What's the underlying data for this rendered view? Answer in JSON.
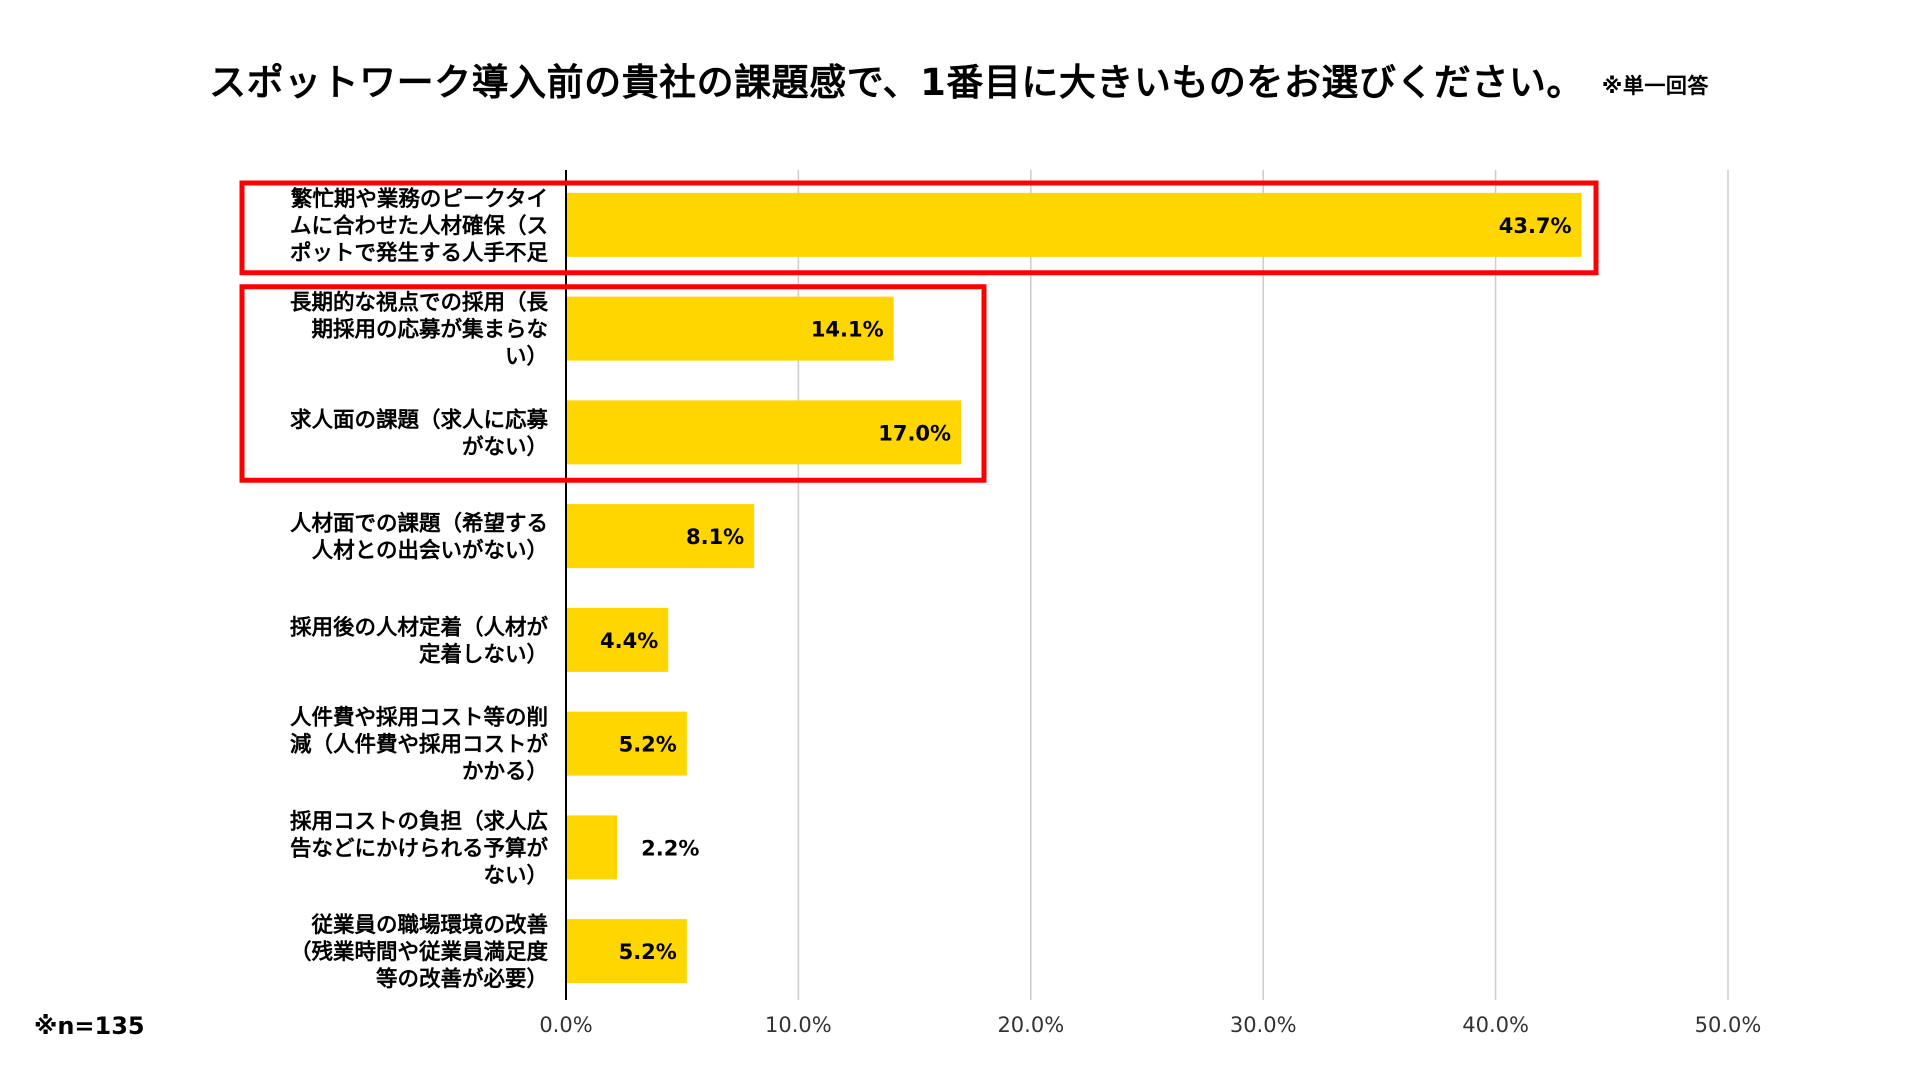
{
  "title": "スポットワーク導入前の貴社の課題感で、1番目に大きいものをお選びください。",
  "title_note": "※単一回答",
  "footnote": "※n=135",
  "colors": {
    "bar": "#FFD600",
    "highlight": "#FF0000",
    "grid": "#CCCCCC",
    "axis": "#000000"
  },
  "chart_data": {
    "type": "bar",
    "orientation": "horizontal",
    "title": "スポットワーク導入前の貴社の課題感で、1番目に大きいものをお選びください。",
    "categories": [
      "繁忙期や業務のピークタイムに合わせた人材確保（スポットで発生する人手不足",
      "長期的な視点での採用（長期採用の応募が集まらない）",
      "求人面の課題（求人に応募がない）",
      "人材面での課題（希望する人材との出会いがない）",
      "採用後の人材定着（人材が定着しない）",
      "人件費や採用コスト等の削減（人件費や採用コストがかかる）",
      "採用コストの負担（求人広告などにかけられる予算がない）",
      "従業員の職場環境の改善（残業時間や従業員満足度等の改善が必要）"
    ],
    "category_lines": [
      [
        "繁忙期や業務のピークタイ",
        "ムに合わせた人材確保（ス",
        "ポットで発生する人手不足"
      ],
      [
        "長期的な視点での採用（長",
        "期採用の応募が集まらな",
        "い）"
      ],
      [
        "求人面の課題（求人に応募",
        "がない）"
      ],
      [
        "人材面での課題（希望する",
        "人材との出会いがない）"
      ],
      [
        "採用後の人材定着（人材が",
        "定着しない）"
      ],
      [
        "人件費や採用コスト等の削",
        "減（人件費や採用コストが",
        "かかる）"
      ],
      [
        "採用コストの負担（求人広",
        "告などにかけられる予算が",
        "ない）"
      ],
      [
        "従業員の職場環境の改善",
        "（残業時間や従業員満足度",
        "等の改善が必要）"
      ]
    ],
    "values": [
      43.7,
      14.1,
      17.0,
      8.1,
      4.4,
      5.2,
      2.2,
      5.2
    ],
    "value_labels": [
      "43.7%",
      "14.1%",
      "17.0%",
      "8.1%",
      "4.4%",
      "5.2%",
      "2.2%",
      "5.2%"
    ],
    "xlim": [
      0,
      50
    ],
    "xticks": [
      0,
      10,
      20,
      30,
      40,
      50
    ],
    "xtick_labels": [
      "0.0%",
      "10.0%",
      "20.0%",
      "30.0%",
      "40.0%",
      "50.0%"
    ],
    "grid": true,
    "highlight_groups": [
      [
        0
      ],
      [
        1,
        2
      ]
    ]
  }
}
